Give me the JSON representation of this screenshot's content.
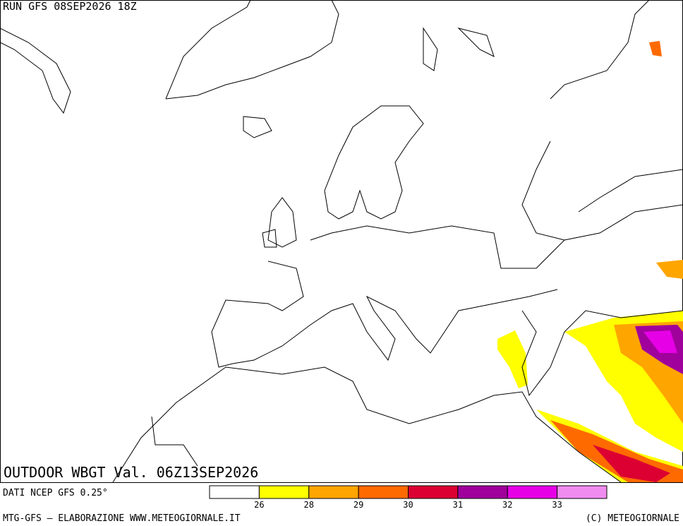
{
  "header": {
    "run": "RUN GFS 08SEP2026 18Z",
    "product": "OUTDOOR WBGT Val. 06Z13SEP2026",
    "source": "DATI NCEP GFS 0.25°"
  },
  "legend": {
    "colors": [
      "#ffffff",
      "#ffff00",
      "#ffa500",
      "#ff6a00",
      "#dc0032",
      "#a0009b",
      "#e600e6",
      "#f08cf0"
    ],
    "ticks": [
      26,
      28,
      29,
      30,
      31,
      32,
      33
    ]
  },
  "footer": {
    "left": "MTG-GFS — ELABORAZIONE WWW.METEOGIORNALE.IT",
    "right": "(C) METEOGIORNALE"
  }
}
